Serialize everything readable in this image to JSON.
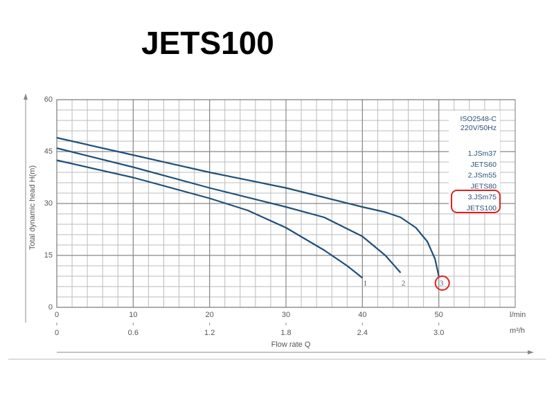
{
  "title": "JETS100",
  "chart_data": {
    "type": "line",
    "y_label": "Total dynamic head H(m)",
    "x_label": "Flow rate Q",
    "x_unit": "l/min",
    "x2_unit": "m³/h",
    "annotations": [
      "ISO2548-C",
      "220V/50Hz"
    ],
    "xlim": [
      0,
      60
    ],
    "xticks": [
      0,
      10,
      20,
      30,
      40,
      50
    ],
    "x2lim": [
      0,
      3.6
    ],
    "x2ticks": [
      0,
      0.6,
      1.2,
      1.8,
      2.4,
      {
        "value": 3,
        "label": "3.0"
      }
    ],
    "ylim": [
      0,
      60
    ],
    "yticks": [
      0,
      15,
      30,
      45,
      60
    ],
    "grid": true,
    "series": [
      {
        "name": "1.JSm37",
        "model": "JETS60",
        "label": "1",
        "color": "#1f4f78",
        "x": [
          0,
          10,
          20,
          25,
          30,
          35,
          38,
          40
        ],
        "values": [
          42.5,
          37.5,
          31.5,
          28,
          23,
          16.5,
          12,
          8.5
        ]
      },
      {
        "name": "2.JSm55",
        "model": "JETS80",
        "label": "2",
        "color": "#1f4f78",
        "x": [
          0,
          10,
          20,
          30,
          35,
          40,
          43,
          45
        ],
        "values": [
          46,
          40.5,
          34.5,
          29,
          26,
          20.5,
          15,
          10
        ]
      },
      {
        "name": "3.JSm75",
        "model": "JETS100",
        "label": "3",
        "color": "#1f4f78",
        "x": [
          0,
          10,
          20,
          30,
          40,
          43,
          45,
          47,
          48.5,
          49.5,
          50
        ],
        "values": [
          49,
          44,
          39,
          34.5,
          29,
          27.5,
          26,
          23,
          19,
          14,
          9
        ]
      }
    ]
  }
}
